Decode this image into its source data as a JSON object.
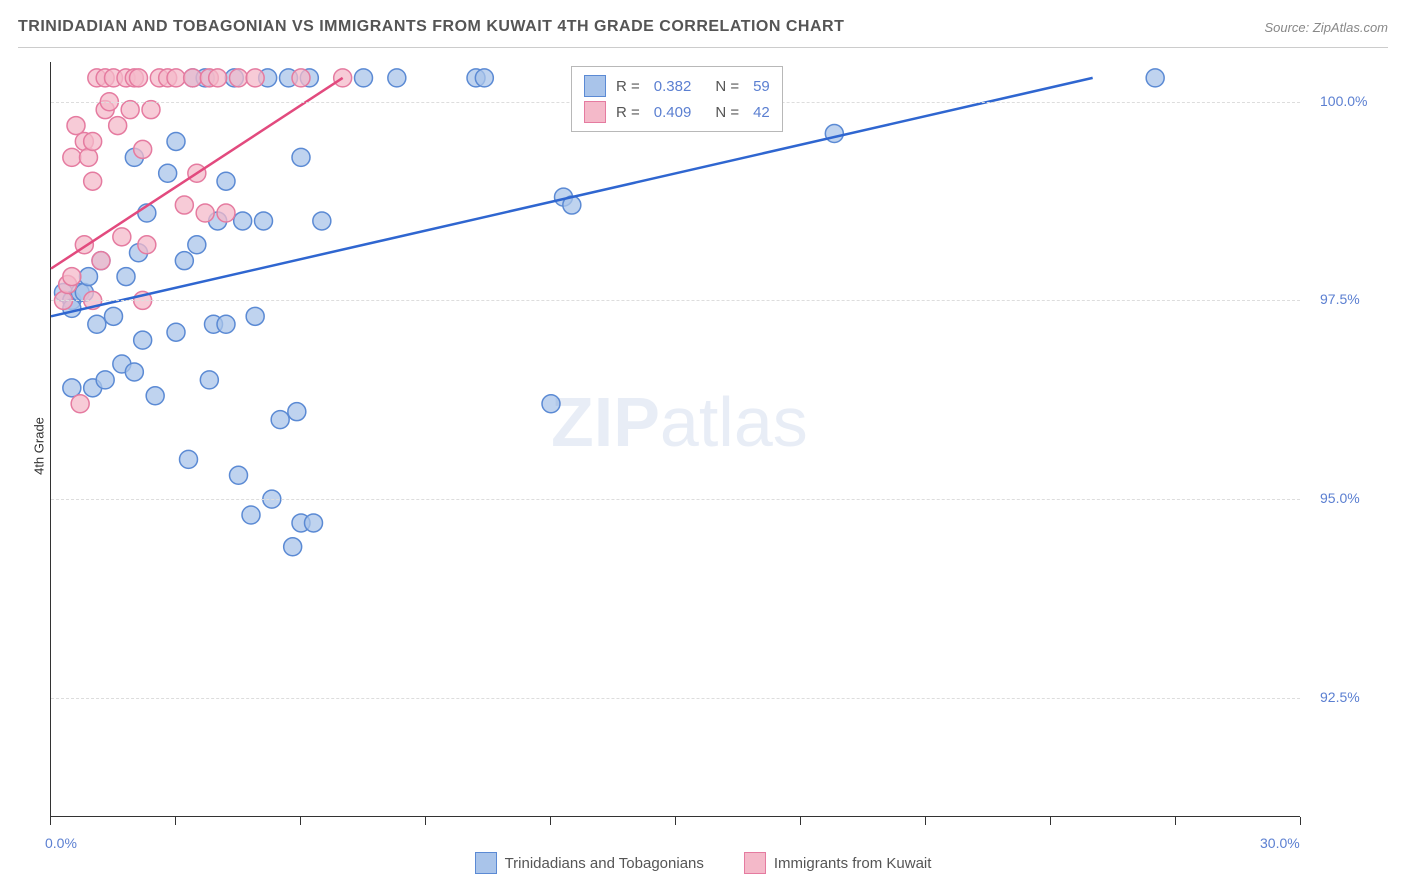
{
  "header": {
    "title": "TRINIDADIAN AND TOBAGONIAN VS IMMIGRANTS FROM KUWAIT 4TH GRADE CORRELATION CHART",
    "source": "Source: ZipAtlas.com"
  },
  "chart": {
    "type": "scatter",
    "y_axis_label": "4th Grade",
    "xlim": [
      0.0,
      30.0
    ],
    "ylim": [
      91.0,
      100.5
    ],
    "x_ticks_minor": [
      0,
      3,
      6,
      9,
      12,
      15,
      18,
      21,
      24,
      27,
      30
    ],
    "x_ticks_labeled": [
      {
        "val": 0.0,
        "label": "0.0%"
      },
      {
        "val": 30.0,
        "label": "30.0%"
      }
    ],
    "y_ticks": [
      {
        "val": 92.5,
        "label": "92.5%"
      },
      {
        "val": 95.0,
        "label": "95.0%"
      },
      {
        "val": 97.5,
        "label": "97.5%"
      },
      {
        "val": 100.0,
        "label": "100.0%"
      }
    ],
    "grid_color": "#dddddd",
    "background_color": "#ffffff",
    "watermark": {
      "zip": "ZIP",
      "atlas": "atlas"
    },
    "series": [
      {
        "name": "Trinidadians and Tobagonians",
        "marker_color": "#a9c4ea",
        "marker_stroke": "#5b8ad4",
        "line_color": "#2f66d0",
        "marker_radius": 9,
        "trend": {
          "x1": 0.0,
          "y1": 97.3,
          "x2": 25.0,
          "y2": 100.3
        },
        "points": [
          [
            0.3,
            97.6
          ],
          [
            0.5,
            97.5
          ],
          [
            0.5,
            97.4
          ],
          [
            0.7,
            97.6
          ],
          [
            0.8,
            97.6
          ],
          [
            0.9,
            97.8
          ],
          [
            1.0,
            96.4
          ],
          [
            1.1,
            97.2
          ],
          [
            1.2,
            98.0
          ],
          [
            1.5,
            97.3
          ],
          [
            1.7,
            96.7
          ],
          [
            1.8,
            97.8
          ],
          [
            2.0,
            96.6
          ],
          [
            2.0,
            99.3
          ],
          [
            2.1,
            98.1
          ],
          [
            2.2,
            97.0
          ],
          [
            2.3,
            98.6
          ],
          [
            2.5,
            96.3
          ],
          [
            2.8,
            99.1
          ],
          [
            3.0,
            99.5
          ],
          [
            3.0,
            97.1
          ],
          [
            3.2,
            98.0
          ],
          [
            3.3,
            95.5
          ],
          [
            3.4,
            100.3
          ],
          [
            3.5,
            98.2
          ],
          [
            3.7,
            100.3
          ],
          [
            3.8,
            96.5
          ],
          [
            3.9,
            97.2
          ],
          [
            4.0,
            98.5
          ],
          [
            4.2,
            97.2
          ],
          [
            4.2,
            99.0
          ],
          [
            4.4,
            100.3
          ],
          [
            4.5,
            95.3
          ],
          [
            4.6,
            98.5
          ],
          [
            4.8,
            94.8
          ],
          [
            4.9,
            97.3
          ],
          [
            5.1,
            98.5
          ],
          [
            5.2,
            100.3
          ],
          [
            5.3,
            95.0
          ],
          [
            5.5,
            96.0
          ],
          [
            5.7,
            100.3
          ],
          [
            5.8,
            94.4
          ],
          [
            5.9,
            96.1
          ],
          [
            6.0,
            94.7
          ],
          [
            6.0,
            99.3
          ],
          [
            6.2,
            100.3
          ],
          [
            6.3,
            94.7
          ],
          [
            6.5,
            98.5
          ],
          [
            7.5,
            100.3
          ],
          [
            8.3,
            100.3
          ],
          [
            10.2,
            100.3
          ],
          [
            10.4,
            100.3
          ],
          [
            12.0,
            96.2
          ],
          [
            12.3,
            98.8
          ],
          [
            12.5,
            98.7
          ],
          [
            18.8,
            99.6
          ],
          [
            26.5,
            100.3
          ],
          [
            0.5,
            96.4
          ],
          [
            1.3,
            96.5
          ]
        ]
      },
      {
        "name": "Immigrants from Kuwait",
        "marker_color": "#f4b9c9",
        "marker_stroke": "#e57ba0",
        "line_color": "#e24a7e",
        "marker_radius": 9,
        "trend": {
          "x1": 0.0,
          "y1": 97.9,
          "x2": 7.0,
          "y2": 100.3
        },
        "points": [
          [
            0.3,
            97.5
          ],
          [
            0.4,
            97.7
          ],
          [
            0.5,
            97.8
          ],
          [
            0.5,
            99.3
          ],
          [
            0.6,
            99.7
          ],
          [
            0.8,
            98.2
          ],
          [
            0.8,
            99.5
          ],
          [
            0.9,
            99.3
          ],
          [
            1.0,
            99.0
          ],
          [
            1.0,
            99.5
          ],
          [
            1.1,
            100.3
          ],
          [
            1.2,
            98.0
          ],
          [
            1.3,
            99.9
          ],
          [
            1.3,
            100.3
          ],
          [
            1.4,
            100.0
          ],
          [
            1.5,
            100.3
          ],
          [
            1.6,
            99.7
          ],
          [
            1.7,
            98.3
          ],
          [
            1.8,
            100.3
          ],
          [
            1.9,
            99.9
          ],
          [
            2.0,
            100.3
          ],
          [
            2.1,
            100.3
          ],
          [
            2.2,
            97.5
          ],
          [
            2.2,
            99.4
          ],
          [
            2.3,
            98.2
          ],
          [
            2.4,
            99.9
          ],
          [
            2.6,
            100.3
          ],
          [
            2.8,
            100.3
          ],
          [
            3.0,
            100.3
          ],
          [
            3.2,
            98.7
          ],
          [
            3.4,
            100.3
          ],
          [
            3.5,
            99.1
          ],
          [
            3.7,
            98.6
          ],
          [
            3.8,
            100.3
          ],
          [
            4.0,
            100.3
          ],
          [
            4.2,
            98.6
          ],
          [
            4.5,
            100.3
          ],
          [
            4.9,
            100.3
          ],
          [
            6.0,
            100.3
          ],
          [
            7.0,
            100.3
          ],
          [
            0.7,
            96.2
          ],
          [
            1.0,
            97.5
          ]
        ]
      }
    ],
    "legend_top": {
      "rows": [
        {
          "swatch_fill": "#a9c4ea",
          "swatch_stroke": "#5b8ad4",
          "R": "0.382",
          "N": "59"
        },
        {
          "swatch_fill": "#f4b9c9",
          "swatch_stroke": "#e57ba0",
          "R": "0.409",
          "N": "42"
        }
      ]
    },
    "legend_bottom": [
      {
        "swatch_fill": "#a9c4ea",
        "swatch_stroke": "#5b8ad4",
        "label": "Trinidadians and Tobagonians"
      },
      {
        "swatch_fill": "#f4b9c9",
        "swatch_stroke": "#e57ba0",
        "label": "Immigrants from Kuwait"
      }
    ]
  }
}
